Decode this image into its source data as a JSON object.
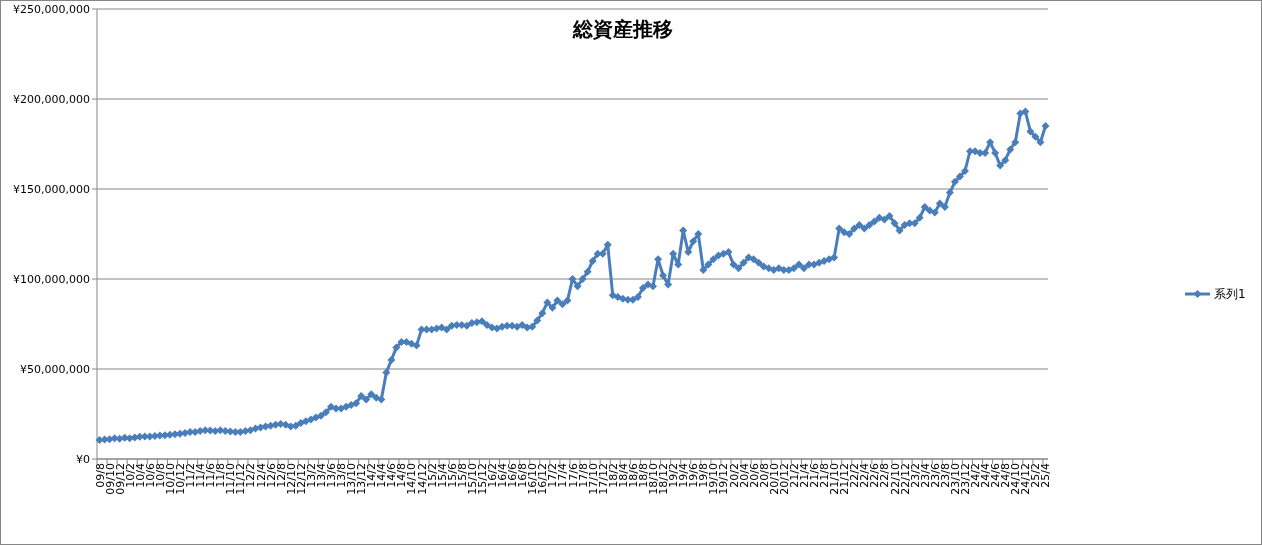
{
  "chart_data": {
    "type": "line",
    "title": "総資産推移",
    "categories": [
      "09/8",
      null,
      "09/10",
      null,
      "09/12",
      null,
      "10/2",
      null,
      "10/4",
      null,
      "10/6",
      null,
      "10/8",
      null,
      "10/10",
      null,
      "10/12",
      null,
      "11/2",
      null,
      "11/4",
      null,
      "11/6",
      null,
      "11/8",
      null,
      "11/10",
      null,
      "11/12",
      null,
      "12/2",
      null,
      "12/4",
      null,
      "12/6",
      null,
      "12/8",
      null,
      "12/10",
      null,
      "12/12",
      null,
      "13/2",
      null,
      "13/4",
      null,
      "13/6",
      null,
      "13/8",
      null,
      "13/10",
      null,
      "13/12",
      null,
      "14/2",
      null,
      "14/4",
      null,
      "14/6",
      null,
      "14/8",
      null,
      "14/10",
      null,
      "14/12",
      null,
      "15/2",
      null,
      "15/4",
      null,
      "15/6",
      null,
      "15/8",
      null,
      "15/10",
      null,
      "15/12",
      null,
      "16/2",
      null,
      "16/4",
      null,
      "16/6",
      null,
      "16/8",
      null,
      "16/10",
      null,
      "16/12",
      null,
      "17/2",
      null,
      "17/4",
      null,
      "17/6",
      null,
      "17/8",
      null,
      "17/10",
      null,
      "17/12",
      null,
      "18/2",
      null,
      "18/4",
      null,
      "18/6",
      null,
      "18/8",
      null,
      "18/10",
      null,
      "18/12",
      null,
      "19/2",
      null,
      "19/4",
      null,
      "19/6",
      null,
      "19/8",
      null,
      "19/10",
      null,
      "19/12",
      null,
      "20/2",
      null,
      "20/4",
      null,
      "20/6",
      null,
      "20/8",
      null,
      "20/10",
      null,
      "20/12",
      null,
      "21/2",
      null,
      "21/4",
      null,
      "21/6",
      null,
      "21/8",
      null,
      "21/10",
      null,
      "21/12",
      null,
      "22/2",
      null,
      "22/4",
      null,
      "22/6",
      null,
      "22/8",
      null,
      "22/10",
      null,
      "22/12",
      null,
      "23/2",
      null,
      "23/4",
      null,
      "23/6",
      null,
      "23/8",
      null,
      "23/10",
      null,
      "23/12",
      null,
      "24/2",
      null,
      "24/4",
      null,
      "24/6",
      null,
      "24/8",
      null,
      "24/10",
      null,
      "24/12",
      null,
      "25/2",
      null,
      "25/4"
    ],
    "series": [
      {
        "name": "系列1",
        "color": "#4a7ebb",
        "values": [
          10500000,
          10800000,
          11000000,
          11500000,
          11300000,
          11800000,
          11500000,
          12000000,
          12300000,
          12500000,
          12500000,
          12800000,
          13000000,
          13200000,
          13500000,
          13800000,
          14000000,
          14500000,
          15000000,
          15000000,
          15500000,
          16000000,
          15800000,
          15500000,
          16000000,
          15500000,
          15300000,
          15000000,
          15000000,
          15500000,
          16000000,
          17000000,
          17500000,
          18000000,
          18500000,
          19000000,
          19500000,
          19000000,
          18000000,
          18500000,
          20000000,
          21000000,
          22000000,
          23000000,
          24000000,
          26000000,
          29000000,
          28000000,
          28000000,
          29000000,
          30000000,
          31000000,
          35000000,
          33000000,
          36000000,
          34000000,
          33000000,
          48000000,
          55000000,
          62000000,
          65000000,
          65000000,
          64000000,
          63000000,
          72000000,
          72000000,
          72000000,
          72500000,
          73000000,
          72000000,
          74000000,
          74500000,
          74500000,
          74000000,
          75500000,
          76000000,
          76500000,
          74500000,
          73000000,
          72500000,
          73500000,
          74000000,
          74000000,
          73500000,
          74500000,
          73000000,
          73500000,
          77000000,
          81000000,
          87000000,
          84000000,
          88000000,
          86000000,
          88000000,
          100000000,
          96000000,
          100000000,
          104000000,
          110000000,
          114000000,
          114000000,
          119000000,
          91000000,
          90000000,
          89000000,
          88500000,
          88500000,
          90000000,
          95000000,
          97000000,
          96000000,
          111000000,
          102000000,
          97000000,
          114000000,
          108000000,
          127000000,
          115000000,
          121000000,
          125000000,
          105000000,
          108000000,
          111000000,
          113000000,
          114000000,
          115000000,
          108000000,
          106000000,
          109000000,
          112000000,
          111000000,
          109000000,
          107000000,
          106000000,
          105000000,
          106000000,
          105000000,
          105000000,
          106000000,
          108000000,
          106000000,
          108000000,
          108000000,
          109000000,
          110000000,
          111000000,
          112000000,
          128000000,
          126000000,
          125000000,
          128000000,
          130000000,
          128000000,
          130000000,
          132000000,
          134000000,
          133000000,
          135000000,
          131000000,
          127000000,
          130000000,
          131000000,
          131000000,
          134000000,
          140000000,
          138000000,
          137000000,
          142000000,
          140000000,
          148000000,
          154000000,
          157000000,
          160000000,
          171000000,
          171000000,
          170000000,
          170000000,
          176000000,
          170000000,
          163000000,
          166000000,
          172000000,
          176000000,
          192000000,
          193000000,
          182000000,
          179000000,
          176000000,
          185000000
        ]
      }
    ],
    "ylim": [
      0,
      250000000
    ],
    "yticks": [
      {
        "value": 0,
        "label": "¥0"
      },
      {
        "value": 50000000,
        "label": "¥50,000,000"
      },
      {
        "value": 100000000,
        "label": "¥100,000,000"
      },
      {
        "value": 150000000,
        "label": "¥150,000,000"
      },
      {
        "value": 200000000,
        "label": "¥200,000,000"
      },
      {
        "value": 250000000,
        "label": "¥250,000,000"
      }
    ],
    "grid": "y",
    "legend": "right",
    "marker": "diamond"
  }
}
